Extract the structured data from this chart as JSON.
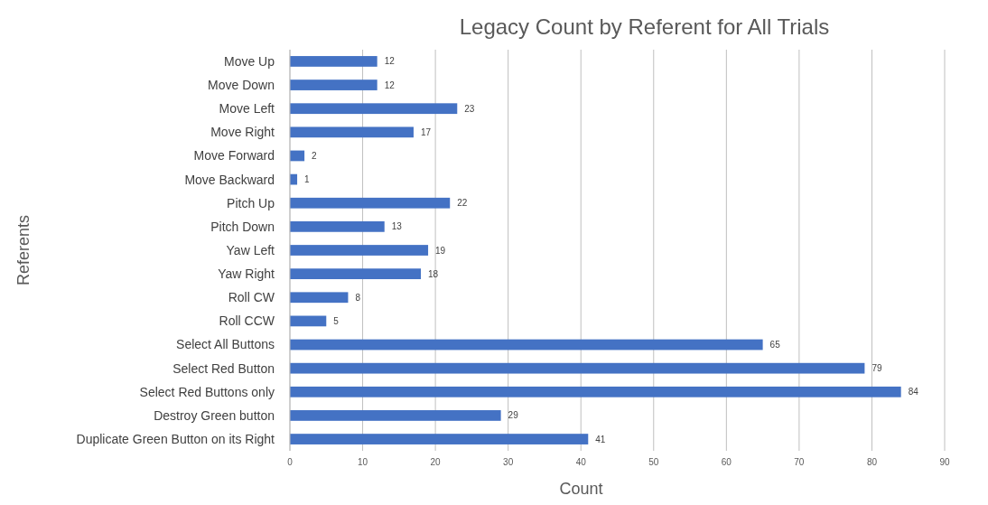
{
  "chart_data": {
    "type": "bar",
    "orientation": "horizontal",
    "title": "Legacy Count by Referent for All Trials",
    "xlabel": "Count",
    "ylabel": "Referents",
    "categories": [
      "Move Up",
      "Move Down",
      "Move Left",
      "Move Right",
      "Move Forward",
      "Move Backward",
      "Pitch Up",
      "Pitch Down",
      "Yaw Left",
      "Yaw Right",
      "Roll CW",
      "Roll CCW",
      "Select All Buttons",
      "Select Red Button",
      "Select Red Buttons only",
      "Destroy Green button",
      "Duplicate Green Button on its Right"
    ],
    "values": [
      12,
      12,
      23,
      17,
      2,
      1,
      22,
      13,
      19,
      18,
      8,
      5,
      65,
      79,
      84,
      29,
      41
    ],
    "color": "#4472c4",
    "xlim": [
      0,
      90
    ],
    "xticks": [
      0,
      10,
      20,
      30,
      40,
      50,
      60,
      70,
      80,
      90
    ],
    "grid": "x",
    "data_labels": true
  }
}
